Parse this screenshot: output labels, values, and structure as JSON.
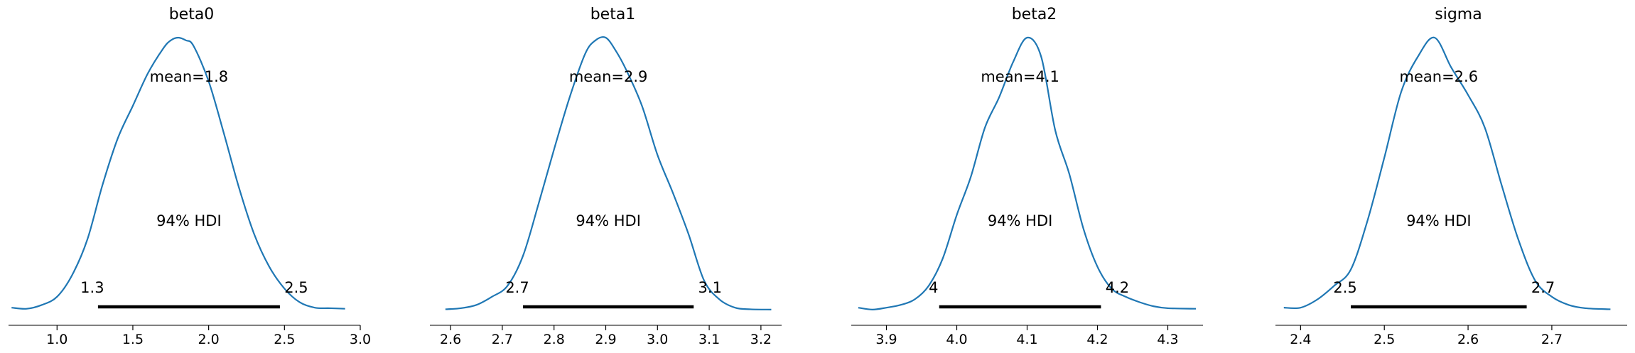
{
  "colors": {
    "density": "#1f77b4",
    "hdi_bar": "#000000",
    "axis": "#000000"
  },
  "chart_data": [
    {
      "type": "line",
      "title": "beta0",
      "mean_label": "mean=1.8",
      "hdi_label": "94% HDI",
      "hdi": [
        1.27,
        2.47
      ],
      "hdi_labels": [
        "1.3",
        "2.5"
      ],
      "xlim": [
        0.68,
        3.0
      ],
      "xticks": [
        1.0,
        1.5,
        2.0,
        2.5,
        3.0
      ],
      "xtick_labels": [
        "1.0",
        "1.5",
        "2.0",
        "2.5",
        "3.0"
      ],
      "x": [
        0.7,
        0.8,
        0.9,
        1.0,
        1.1,
        1.2,
        1.3,
        1.4,
        1.5,
        1.6,
        1.7,
        1.75,
        1.8,
        1.85,
        1.9,
        2.0,
        2.1,
        2.2,
        2.3,
        2.4,
        2.5,
        2.6,
        2.7,
        2.8,
        2.9
      ],
      "y": [
        0.01,
        0.006,
        0.02,
        0.05,
        0.13,
        0.26,
        0.46,
        0.63,
        0.75,
        0.87,
        0.96,
        0.99,
        1.0,
        0.99,
        0.97,
        0.84,
        0.65,
        0.45,
        0.28,
        0.16,
        0.08,
        0.03,
        0.01,
        0.008,
        0.006
      ]
    },
    {
      "type": "line",
      "title": "beta1",
      "mean_label": "mean=2.9",
      "hdi_label": "94% HDI",
      "hdi": [
        2.74,
        3.07
      ],
      "hdi_labels": [
        "2.7",
        "3.1"
      ],
      "xlim": [
        2.56,
        3.24
      ],
      "xticks": [
        2.6,
        2.7,
        2.8,
        2.9,
        3.0,
        3.1,
        3.2
      ],
      "xtick_labels": [
        "2.6",
        "2.7",
        "2.8",
        "2.9",
        "3.0",
        "3.1",
        "3.2"
      ],
      "x": [
        2.59,
        2.62,
        2.65,
        2.68,
        2.71,
        2.74,
        2.77,
        2.8,
        2.83,
        2.86,
        2.88,
        2.9,
        2.92,
        2.94,
        2.97,
        3.0,
        3.03,
        3.06,
        3.09,
        3.12,
        3.15,
        3.18,
        3.22
      ],
      "y": [
        0.004,
        0.008,
        0.02,
        0.05,
        0.09,
        0.2,
        0.39,
        0.59,
        0.78,
        0.94,
        0.99,
        1.0,
        0.95,
        0.88,
        0.75,
        0.57,
        0.43,
        0.28,
        0.11,
        0.04,
        0.01,
        0.004,
        0.003
      ]
    },
    {
      "type": "line",
      "title": "beta2",
      "mean_label": "mean=4.1",
      "hdi_label": "94% HDI",
      "hdi": [
        3.975,
        4.205
      ],
      "hdi_labels": [
        "4",
        "4.2"
      ],
      "xlim": [
        3.85,
        4.35
      ],
      "xticks": [
        3.9,
        4.0,
        4.1,
        4.2,
        4.3
      ],
      "xtick_labels": [
        "3.9",
        "4.0",
        "4.1",
        "4.2",
        "4.3"
      ],
      "x": [
        3.86,
        3.88,
        3.9,
        3.92,
        3.94,
        3.96,
        3.98,
        4.0,
        4.02,
        4.04,
        4.06,
        4.08,
        4.1,
        4.12,
        4.14,
        4.16,
        4.18,
        4.2,
        4.22,
        4.24,
        4.26,
        4.28,
        4.3,
        4.34
      ],
      "y": [
        0.01,
        0.003,
        0.01,
        0.02,
        0.04,
        0.09,
        0.19,
        0.35,
        0.49,
        0.67,
        0.78,
        0.91,
        1.0,
        0.93,
        0.66,
        0.5,
        0.3,
        0.16,
        0.08,
        0.05,
        0.03,
        0.015,
        0.008,
        0.006
      ]
    },
    {
      "type": "line",
      "title": "sigma",
      "mean_label": "mean=2.6",
      "hdi_label": "94% HDI",
      "hdi": [
        2.46,
        2.67
      ],
      "hdi_labels": [
        "2.5",
        "2.7"
      ],
      "xlim": [
        2.37,
        2.79
      ],
      "xticks": [
        2.4,
        2.5,
        2.6,
        2.7
      ],
      "xtick_labels": [
        "2.4",
        "2.5",
        "2.6",
        "2.7"
      ],
      "x": [
        2.38,
        2.4,
        2.42,
        2.44,
        2.46,
        2.48,
        2.5,
        2.52,
        2.54,
        2.56,
        2.58,
        2.6,
        2.62,
        2.64,
        2.66,
        2.68,
        2.7,
        2.72,
        2.74,
        2.77
      ],
      "y": [
        0.01,
        0.01,
        0.04,
        0.09,
        0.15,
        0.33,
        0.56,
        0.8,
        0.93,
        1.0,
        0.89,
        0.79,
        0.67,
        0.46,
        0.26,
        0.11,
        0.05,
        0.02,
        0.008,
        0.004
      ]
    }
  ]
}
